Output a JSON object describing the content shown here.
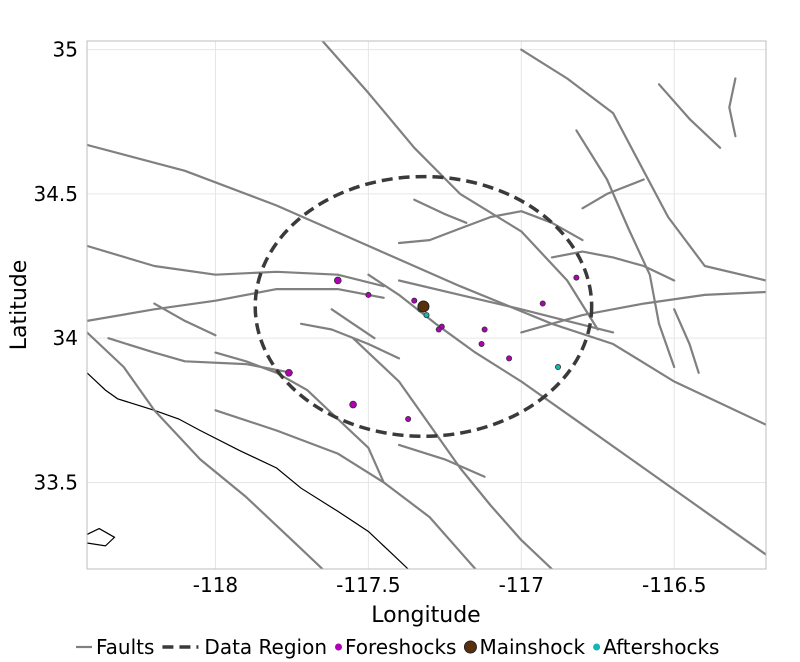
{
  "chart_data": {
    "type": "map",
    "xlabel": "Longitude",
    "ylabel": "Latitude",
    "xlim": [
      -118.42,
      -116.2
    ],
    "ylim": [
      33.2,
      35.03
    ],
    "x_ticks": [
      {
        "value": -118,
        "label": "-118"
      },
      {
        "value": -117.5,
        "label": "-117.5"
      },
      {
        "value": -117,
        "label": "-117"
      },
      {
        "value": -116.5,
        "label": "-116.5"
      }
    ],
    "y_ticks": [
      {
        "value": 35,
        "label": "35"
      },
      {
        "value": 34.5,
        "label": "34.5"
      },
      {
        "value": 34,
        "label": "34"
      },
      {
        "value": 33.5,
        "label": "33.5"
      }
    ],
    "grid": true,
    "legend": {
      "position": "bottom",
      "entries": [
        {
          "label": "Faults",
          "style": "line"
        },
        {
          "label": "Data Region",
          "style": "dashed"
        },
        {
          "label": "Foreshocks",
          "style": "dot"
        },
        {
          "label": "Mainshock",
          "style": "dot"
        },
        {
          "label": "Aftershocks",
          "style": "dot"
        }
      ]
    },
    "data_region": {
      "center": [
        -117.32,
        34.11
      ],
      "radius_deg_lon": 0.55,
      "radius_deg_lat": 0.45
    },
    "mainshock": [
      {
        "lon": -117.32,
        "lat": 34.11
      }
    ],
    "foreshocks": [
      {
        "lon": -117.6,
        "lat": 34.2
      },
      {
        "lon": -117.5,
        "lat": 34.15
      },
      {
        "lon": -117.35,
        "lat": 34.13
      },
      {
        "lon": -117.26,
        "lat": 34.04
      },
      {
        "lon": -117.27,
        "lat": 34.03
      },
      {
        "lon": -117.12,
        "lat": 34.03
      },
      {
        "lon": -117.13,
        "lat": 33.98
      },
      {
        "lon": -117.04,
        "lat": 33.93
      },
      {
        "lon": -116.93,
        "lat": 34.12
      },
      {
        "lon": -116.82,
        "lat": 34.21
      },
      {
        "lon": -117.76,
        "lat": 33.88
      },
      {
        "lon": -117.55,
        "lat": 33.77
      },
      {
        "lon": -117.37,
        "lat": 33.72
      }
    ],
    "aftershocks": [
      {
        "lon": -117.33,
        "lat": 34.1
      },
      {
        "lon": -117.31,
        "lat": 34.08
      },
      {
        "lon": -116.88,
        "lat": 33.9
      }
    ],
    "coastline": [
      [
        [
          -118.42,
          33.88
        ],
        [
          -118.36,
          33.82
        ],
        [
          -118.32,
          33.79
        ],
        [
          -118.2,
          33.75
        ],
        [
          -118.12,
          33.72
        ],
        [
          -118.05,
          33.68
        ],
        [
          -117.92,
          33.61
        ],
        [
          -117.8,
          33.55
        ],
        [
          -117.72,
          33.48
        ],
        [
          -117.6,
          33.4
        ],
        [
          -117.5,
          33.33
        ],
        [
          -117.42,
          33.25
        ],
        [
          -117.37,
          33.2
        ]
      ],
      [
        [
          -118.42,
          33.32
        ],
        [
          -118.38,
          33.34
        ],
        [
          -118.33,
          33.31
        ],
        [
          -118.36,
          33.28
        ],
        [
          -118.42,
          33.29
        ]
      ]
    ],
    "faults": [
      [
        [
          -118.42,
          34.67
        ],
        [
          -118.1,
          34.58
        ],
        [
          -117.8,
          34.46
        ],
        [
          -117.5,
          34.32
        ],
        [
          -117.2,
          34.18
        ],
        [
          -116.9,
          34.05
        ],
        [
          -116.7,
          33.98
        ],
        [
          -116.5,
          33.85
        ],
        [
          -116.2,
          33.7
        ]
      ],
      [
        [
          -117.65,
          35.03
        ],
        [
          -117.5,
          34.85
        ],
        [
          -117.35,
          34.66
        ],
        [
          -117.2,
          34.5
        ],
        [
          -117.0,
          34.37
        ],
        [
          -116.85,
          34.2
        ],
        [
          -116.75,
          34.03
        ]
      ],
      [
        [
          -118.42,
          34.32
        ],
        [
          -118.2,
          34.25
        ],
        [
          -118.0,
          34.22
        ],
        [
          -117.8,
          34.23
        ],
        [
          -117.6,
          34.22
        ],
        [
          -117.45,
          34.18
        ]
      ],
      [
        [
          -118.42,
          34.06
        ],
        [
          -118.2,
          34.1
        ],
        [
          -118.0,
          34.13
        ],
        [
          -117.8,
          34.17
        ],
        [
          -117.6,
          34.17
        ],
        [
          -117.45,
          34.14
        ]
      ],
      [
        [
          -118.35,
          34.0
        ],
        [
          -118.2,
          33.95
        ],
        [
          -118.1,
          33.92
        ],
        [
          -117.9,
          33.91
        ],
        [
          -117.75,
          33.88
        ]
      ],
      [
        [
          -118.42,
          34.02
        ],
        [
          -118.3,
          33.9
        ],
        [
          -118.2,
          33.75
        ],
        [
          -118.05,
          33.58
        ],
        [
          -117.9,
          33.45
        ],
        [
          -117.75,
          33.3
        ],
        [
          -117.65,
          33.2
        ]
      ],
      [
        [
          -118.0,
          33.75
        ],
        [
          -117.8,
          33.68
        ],
        [
          -117.6,
          33.6
        ],
        [
          -117.45,
          33.5
        ],
        [
          -117.3,
          33.38
        ],
        [
          -117.2,
          33.26
        ],
        [
          -117.15,
          33.2
        ]
      ],
      [
        [
          -117.55,
          34.0
        ],
        [
          -117.4,
          33.85
        ],
        [
          -117.3,
          33.7
        ],
        [
          -117.2,
          33.55
        ],
        [
          -117.1,
          33.42
        ],
        [
          -117.0,
          33.3
        ],
        [
          -116.9,
          33.2
        ]
      ],
      [
        [
          -117.5,
          34.22
        ],
        [
          -117.4,
          34.15
        ],
        [
          -117.28,
          34.05
        ],
        [
          -117.15,
          33.95
        ],
        [
          -117.0,
          33.85
        ],
        [
          -116.8,
          33.7
        ],
        [
          -116.6,
          33.55
        ],
        [
          -116.4,
          33.4
        ],
        [
          -116.2,
          33.25
        ]
      ],
      [
        [
          -117.0,
          34.02
        ],
        [
          -116.8,
          34.08
        ],
        [
          -116.6,
          34.12
        ],
        [
          -116.4,
          34.15
        ],
        [
          -116.2,
          34.16
        ]
      ],
      [
        [
          -117.4,
          34.2
        ],
        [
          -117.2,
          34.15
        ],
        [
          -117.0,
          34.1
        ],
        [
          -116.85,
          34.06
        ],
        [
          -116.7,
          34.02
        ]
      ],
      [
        [
          -117.4,
          34.33
        ],
        [
          -117.3,
          34.34
        ],
        [
          -117.2,
          34.38
        ],
        [
          -117.1,
          34.42
        ],
        [
          -117.0,
          34.44
        ],
        [
          -116.9,
          34.4
        ],
        [
          -116.8,
          34.34
        ]
      ],
      [
        [
          -117.0,
          35.0
        ],
        [
          -116.85,
          34.9
        ],
        [
          -116.7,
          34.78
        ],
        [
          -116.62,
          34.62
        ],
        [
          -116.52,
          34.42
        ],
        [
          -116.4,
          34.25
        ],
        [
          -116.2,
          34.2
        ]
      ],
      [
        [
          -116.82,
          34.72
        ],
        [
          -116.72,
          34.55
        ],
        [
          -116.65,
          34.38
        ],
        [
          -116.58,
          34.22
        ],
        [
          -116.55,
          34.05
        ],
        [
          -116.5,
          33.9
        ]
      ],
      [
        [
          -116.9,
          34.28
        ],
        [
          -116.8,
          34.3
        ],
        [
          -116.7,
          34.28
        ],
        [
          -116.6,
          34.25
        ],
        [
          -116.5,
          34.2
        ]
      ],
      [
        [
          -116.5,
          34.1
        ],
        [
          -116.45,
          33.98
        ],
        [
          -116.42,
          33.88
        ]
      ],
      [
        [
          -117.62,
          34.1
        ],
        [
          -117.55,
          34.05
        ],
        [
          -117.48,
          34.0
        ]
      ],
      [
        [
          -117.72,
          34.05
        ],
        [
          -117.62,
          34.03
        ],
        [
          -117.5,
          33.98
        ],
        [
          -117.4,
          33.93
        ]
      ],
      [
        [
          -118.0,
          33.95
        ],
        [
          -117.9,
          33.92
        ],
        [
          -117.8,
          33.88
        ],
        [
          -117.7,
          33.82
        ],
        [
          -117.6,
          33.72
        ],
        [
          -117.5,
          33.62
        ],
        [
          -117.45,
          33.5
        ]
      ],
      [
        [
          -118.2,
          34.12
        ],
        [
          -118.1,
          34.06
        ],
        [
          -118.0,
          34.01
        ]
      ],
      [
        [
          -116.8,
          34.45
        ],
        [
          -116.72,
          34.5
        ],
        [
          -116.6,
          34.55
        ]
      ],
      [
        [
          -116.55,
          34.88
        ],
        [
          -116.45,
          34.76
        ],
        [
          -116.35,
          34.66
        ]
      ],
      [
        [
          -117.35,
          34.48
        ],
        [
          -117.25,
          34.43
        ],
        [
          -117.18,
          34.4
        ]
      ],
      [
        [
          -116.3,
          34.9
        ],
        [
          -116.32,
          34.8
        ],
        [
          -116.3,
          34.7
        ]
      ],
      [
        [
          -117.4,
          33.63
        ],
        [
          -117.25,
          33.58
        ],
        [
          -117.12,
          33.52
        ]
      ]
    ]
  }
}
